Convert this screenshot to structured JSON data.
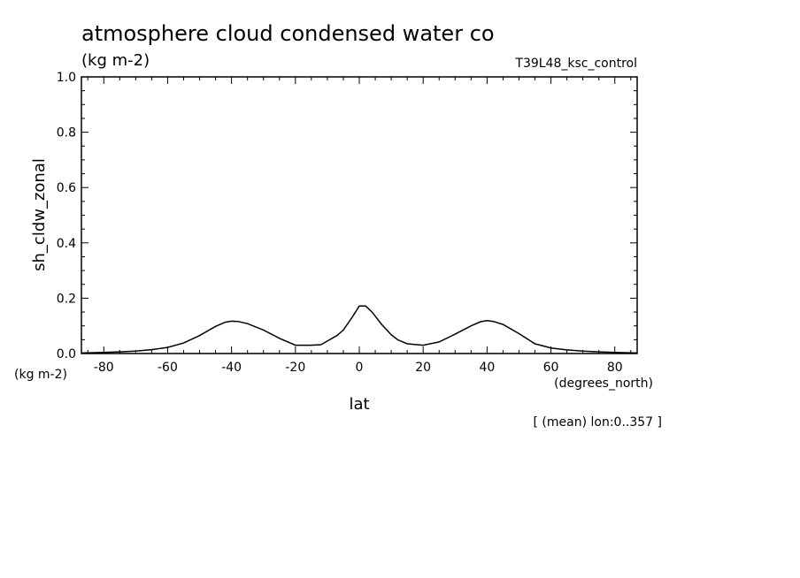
{
  "chart_data": {
    "type": "line",
    "title": "atmosphere cloud condensed water co",
    "units": "(kg m-2)",
    "subtitle_right": "T39L48_ksc_control",
    "ylabel": "sh_cldw_zonal",
    "ylabel_units": "(kg m-2)",
    "xlabel": "lat",
    "xlabel_units": "(degrees_north)",
    "footnote": "[ (mean) lon:0..357 ]",
    "xlim": [
      -87,
      87
    ],
    "ylim": [
      0.0,
      1.0
    ],
    "xticks": [
      -80,
      -60,
      -40,
      -20,
      0,
      20,
      40,
      60,
      80
    ],
    "xtick_labels": [
      "-80",
      "-60",
      "-40",
      "-20",
      "0",
      "20",
      "40",
      "60",
      "80"
    ],
    "yticks": [
      0.0,
      0.2,
      0.4,
      0.6,
      0.8,
      1.0
    ],
    "ytick_labels": [
      "0.0",
      "0.2",
      "0.4",
      "0.6",
      "0.8",
      "1.0"
    ],
    "series": [
      {
        "name": "sh_cldw_zonal",
        "x": [
          -87,
          -80,
          -75,
          -70,
          -65,
          -60,
          -55,
          -50,
          -45,
          -42,
          -40,
          -38,
          -35,
          -30,
          -25,
          -20,
          -15,
          -12,
          -10,
          -7,
          -5,
          -2,
          0,
          2,
          4,
          7,
          10,
          12,
          15,
          20,
          25,
          30,
          35,
          38,
          40,
          42,
          45,
          50,
          55,
          60,
          65,
          70,
          75,
          80,
          87
        ],
        "values": [
          0.002,
          0.004,
          0.006,
          0.009,
          0.014,
          0.022,
          0.038,
          0.065,
          0.098,
          0.113,
          0.117,
          0.116,
          0.108,
          0.085,
          0.055,
          0.03,
          0.03,
          0.032,
          0.045,
          0.065,
          0.085,
          0.135,
          0.172,
          0.172,
          0.15,
          0.105,
          0.068,
          0.05,
          0.035,
          0.03,
          0.042,
          0.07,
          0.1,
          0.115,
          0.119,
          0.116,
          0.105,
          0.072,
          0.035,
          0.02,
          0.013,
          0.009,
          0.006,
          0.004,
          0.002
        ]
      }
    ]
  }
}
